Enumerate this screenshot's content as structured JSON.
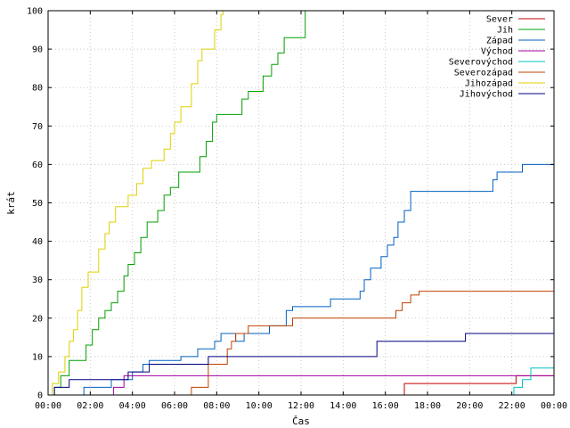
{
  "chart_data": {
    "type": "line",
    "xlabel": "Čas",
    "ylabel": "krát",
    "xlim": [
      0,
      24
    ],
    "ylim": [
      0,
      100
    ],
    "grid": true,
    "legend_position": "top-right",
    "x_ticks": [
      {
        "value": 0,
        "label": "00:00"
      },
      {
        "value": 2,
        "label": "02:00"
      },
      {
        "value": 4,
        "label": "04:00"
      },
      {
        "value": 6,
        "label": "06:00"
      },
      {
        "value": 8,
        "label": "08:00"
      },
      {
        "value": 10,
        "label": "10:00"
      },
      {
        "value": 12,
        "label": "12:00"
      },
      {
        "value": 14,
        "label": "14:00"
      },
      {
        "value": 16,
        "label": "16:00"
      },
      {
        "value": 18,
        "label": "18:00"
      },
      {
        "value": 20,
        "label": "20:00"
      },
      {
        "value": 22,
        "label": "22:00"
      },
      {
        "value": 24,
        "label": "00:00"
      }
    ],
    "y_ticks": [
      {
        "value": 0,
        "label": "0"
      },
      {
        "value": 10,
        "label": "10"
      },
      {
        "value": 20,
        "label": "20"
      },
      {
        "value": 30,
        "label": "30"
      },
      {
        "value": 40,
        "label": "40"
      },
      {
        "value": 50,
        "label": "50"
      },
      {
        "value": 60,
        "label": "60"
      },
      {
        "value": 70,
        "label": "70"
      },
      {
        "value": 80,
        "label": "80"
      },
      {
        "value": 90,
        "label": "90"
      },
      {
        "value": 100,
        "label": "100"
      }
    ],
    "series": [
      {
        "name": "Sever",
        "color": "#c00000",
        "points": [
          [
            16.8,
            0
          ],
          [
            16.9,
            3
          ],
          [
            22,
            3
          ],
          [
            22.2,
            5
          ],
          [
            24,
            5
          ]
        ]
      },
      {
        "name": "Jih",
        "color": "#00a000",
        "points": [
          [
            0.2,
            0
          ],
          [
            0.3,
            2
          ],
          [
            0.6,
            5
          ],
          [
            1,
            9
          ],
          [
            1.5,
            9
          ],
          [
            1.8,
            13
          ],
          [
            2.1,
            17
          ],
          [
            2.4,
            20
          ],
          [
            2.7,
            22
          ],
          [
            3.0,
            24
          ],
          [
            3.3,
            27
          ],
          [
            3.6,
            31
          ],
          [
            3.8,
            34
          ],
          [
            4.1,
            37
          ],
          [
            4.4,
            41
          ],
          [
            4.7,
            45
          ],
          [
            5.2,
            48
          ],
          [
            5.5,
            52
          ],
          [
            5.8,
            54
          ],
          [
            6.2,
            58
          ],
          [
            7.0,
            58
          ],
          [
            7.2,
            62
          ],
          [
            7.5,
            66
          ],
          [
            7.8,
            71
          ],
          [
            8.0,
            73
          ],
          [
            9.0,
            73
          ],
          [
            9.2,
            77
          ],
          [
            9.5,
            79
          ],
          [
            10,
            79
          ],
          [
            10.2,
            83
          ],
          [
            10.6,
            86
          ],
          [
            10.9,
            89
          ],
          [
            11.2,
            93
          ],
          [
            11.8,
            93
          ],
          [
            12.2,
            100
          ]
        ]
      },
      {
        "name": "Západ",
        "color": "#0060c0",
        "points": [
          [
            0,
            0
          ],
          [
            1.6,
            0
          ],
          [
            1.7,
            2
          ],
          [
            2.9,
            2
          ],
          [
            3.0,
            4
          ],
          [
            3.9,
            4
          ],
          [
            4.0,
            6
          ],
          [
            4.3,
            6
          ],
          [
            4.5,
            8
          ],
          [
            4.8,
            9
          ],
          [
            6.1,
            9
          ],
          [
            6.3,
            10
          ],
          [
            7.0,
            10
          ],
          [
            7.1,
            12
          ],
          [
            7.8,
            12
          ],
          [
            7.9,
            14
          ],
          [
            8.2,
            16
          ],
          [
            8.7,
            16
          ],
          [
            8.9,
            14
          ],
          [
            9.3,
            16
          ],
          [
            10.3,
            16
          ],
          [
            10.5,
            18
          ],
          [
            11.1,
            18
          ],
          [
            11.3,
            22
          ],
          [
            11.6,
            23
          ],
          [
            13.3,
            23
          ],
          [
            13.4,
            25
          ],
          [
            14.6,
            25
          ],
          [
            14.8,
            27
          ],
          [
            15.0,
            30
          ],
          [
            15.3,
            33
          ],
          [
            15.6,
            33
          ],
          [
            15.8,
            36
          ],
          [
            16.1,
            39
          ],
          [
            16.4,
            41
          ],
          [
            16.6,
            45
          ],
          [
            16.9,
            48
          ],
          [
            17.2,
            53
          ],
          [
            20.9,
            53
          ],
          [
            21.1,
            56
          ],
          [
            21.3,
            58
          ],
          [
            22.3,
            58
          ],
          [
            22.5,
            60
          ],
          [
            24,
            60
          ]
        ]
      },
      {
        "name": "Východ",
        "color": "#a000a0",
        "points": [
          [
            0,
            0
          ],
          [
            3.0,
            0
          ],
          [
            3.1,
            2
          ],
          [
            3.5,
            2
          ],
          [
            3.6,
            5
          ],
          [
            24,
            5
          ]
        ]
      },
      {
        "name": "Severovýchod",
        "color": "#00c0c0",
        "points": [
          [
            22.0,
            0
          ],
          [
            22.1,
            2
          ],
          [
            22.5,
            4
          ],
          [
            22.9,
            7
          ],
          [
            24,
            7
          ]
        ]
      },
      {
        "name": "Severozápad",
        "color": "#c04000",
        "points": [
          [
            6.7,
            0
          ],
          [
            6.8,
            2
          ],
          [
            7.5,
            2
          ],
          [
            7.6,
            8
          ],
          [
            8.4,
            8
          ],
          [
            8.5,
            12
          ],
          [
            8.7,
            14
          ],
          [
            8.9,
            16
          ],
          [
            9.4,
            16
          ],
          [
            9.5,
            18
          ],
          [
            11.4,
            18
          ],
          [
            11.6,
            20
          ],
          [
            16.3,
            20
          ],
          [
            16.5,
            22
          ],
          [
            16.8,
            24
          ],
          [
            17.2,
            26
          ],
          [
            17.6,
            27
          ],
          [
            24,
            27
          ]
        ]
      },
      {
        "name": "Jihozápad",
        "color": "#e0d000",
        "points": [
          [
            0,
            0
          ],
          [
            0.2,
            3
          ],
          [
            0.5,
            6
          ],
          [
            0.8,
            10
          ],
          [
            1.0,
            14
          ],
          [
            1.2,
            17
          ],
          [
            1.4,
            22
          ],
          [
            1.6,
            28
          ],
          [
            1.9,
            32
          ],
          [
            2.2,
            32
          ],
          [
            2.4,
            38
          ],
          [
            2.7,
            42
          ],
          [
            2.9,
            45
          ],
          [
            3.2,
            49
          ],
          [
            3.6,
            49
          ],
          [
            3.8,
            52
          ],
          [
            4.2,
            55
          ],
          [
            4.5,
            59
          ],
          [
            4.9,
            61
          ],
          [
            5.2,
            61
          ],
          [
            5.5,
            64
          ],
          [
            5.8,
            68
          ],
          [
            6.0,
            71
          ],
          [
            6.3,
            75
          ],
          [
            6.6,
            75
          ],
          [
            6.8,
            81
          ],
          [
            7.1,
            87
          ],
          [
            7.3,
            90
          ],
          [
            7.7,
            90
          ],
          [
            7.9,
            95
          ],
          [
            8.2,
            99
          ],
          [
            8.3,
            100
          ]
        ]
      },
      {
        "name": "Jihovýchod",
        "color": "#000080",
        "points": [
          [
            0,
            0
          ],
          [
            0.3,
            2
          ],
          [
            0.8,
            2
          ],
          [
            1.0,
            4
          ],
          [
            3.7,
            4
          ],
          [
            3.8,
            6
          ],
          [
            4.6,
            6
          ],
          [
            4.8,
            8
          ],
          [
            7.4,
            8
          ],
          [
            7.6,
            10
          ],
          [
            15.4,
            10
          ],
          [
            15.6,
            14
          ],
          [
            19.6,
            14
          ],
          [
            19.8,
            16
          ],
          [
            24,
            16
          ]
        ]
      }
    ]
  }
}
